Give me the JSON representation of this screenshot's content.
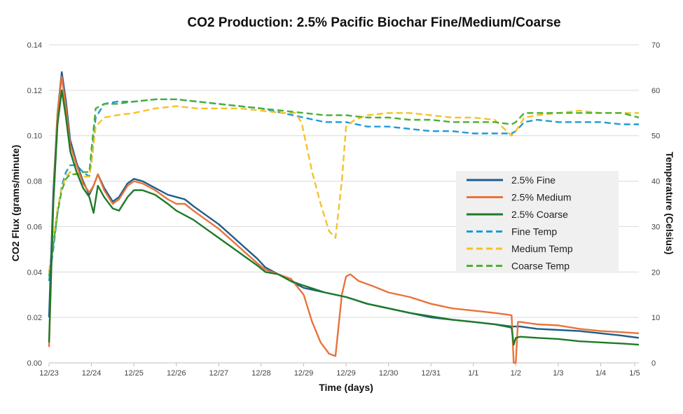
{
  "chart_data": {
    "type": "line",
    "title": "CO2 Production: 2.5% Pacific Biochar Fine/Medium/Coarse",
    "xlabel": "Time (days)",
    "ylabel": "CO2 Flux (grams/minute)",
    "y2label": "Temperature (Celsius)",
    "xlim": [
      0,
      13.9
    ],
    "ylim": [
      0,
      0.14
    ],
    "y2lim": [
      0,
      70
    ],
    "grid": true,
    "legend_position": "right",
    "x_ticks": [
      {
        "x": 0,
        "label": "12/23"
      },
      {
        "x": 1,
        "label": "12/24"
      },
      {
        "x": 2,
        "label": "12/25"
      },
      {
        "x": 3,
        "label": "12/26"
      },
      {
        "x": 4,
        "label": "12/27"
      },
      {
        "x": 5,
        "label": "12/28"
      },
      {
        "x": 6,
        "label": "12/29"
      },
      {
        "x": 7,
        "label": "12/29"
      },
      {
        "x": 8,
        "label": "12/30"
      },
      {
        "x": 9,
        "label": "12/31"
      },
      {
        "x": 10,
        "label": "1/1"
      },
      {
        "x": 11,
        "label": "1/2"
      },
      {
        "x": 12,
        "label": "1/3"
      },
      {
        "x": 13,
        "label": "1/4"
      },
      {
        "x": 13.8,
        "label": "1/5"
      }
    ],
    "y_ticks": [
      "0.00",
      "0.02",
      "0.04",
      "0.06",
      "0.08",
      "0.10",
      "0.12",
      "0.14"
    ],
    "y2_ticks": [
      "0",
      "10",
      "20",
      "30",
      "40",
      "50",
      "60",
      "70"
    ],
    "series": [
      {
        "name": "2.5% Fine",
        "axis": "left",
        "color": "#1F5C8B",
        "dash": false,
        "x": [
          0,
          0.1,
          0.2,
          0.3,
          0.4,
          0.5,
          0.65,
          0.8,
          0.95,
          1.05,
          1.15,
          1.3,
          1.5,
          1.65,
          1.85,
          2.0,
          2.2,
          2.5,
          2.8,
          3.0,
          3.2,
          3.4,
          3.7,
          4.0,
          4.3,
          4.6,
          4.9,
          5.1,
          5.4,
          5.7,
          6.0,
          6.5,
          7.0,
          7.5,
          8.0,
          8.5,
          9.0,
          9.5,
          10.0,
          10.5,
          10.9,
          11.0,
          11.1,
          11.5,
          12.0,
          12.5,
          13.0,
          13.5,
          13.9
        ],
        "y": [
          0.02,
          0.075,
          0.11,
          0.128,
          0.115,
          0.098,
          0.088,
          0.08,
          0.074,
          0.078,
          0.083,
          0.077,
          0.071,
          0.073,
          0.079,
          0.081,
          0.08,
          0.077,
          0.074,
          0.073,
          0.072,
          0.069,
          0.065,
          0.061,
          0.056,
          0.051,
          0.046,
          0.042,
          0.039,
          0.036,
          0.033,
          0.031,
          0.029,
          0.026,
          0.024,
          0.022,
          0.02,
          0.019,
          0.018,
          0.017,
          0.016,
          0.016,
          0.016,
          0.015,
          0.0145,
          0.014,
          0.013,
          0.012,
          0.011
        ]
      },
      {
        "name": "2.5% Medium",
        "axis": "left",
        "color": "#E8733A",
        "dash": false,
        "x": [
          0,
          0.1,
          0.2,
          0.3,
          0.4,
          0.5,
          0.65,
          0.8,
          0.95,
          1.05,
          1.15,
          1.3,
          1.5,
          1.65,
          1.85,
          2.0,
          2.2,
          2.5,
          2.8,
          3.0,
          3.2,
          3.4,
          3.7,
          4.0,
          4.3,
          4.6,
          4.9,
          5.1,
          5.4,
          5.7,
          6.0,
          6.2,
          6.4,
          6.6,
          6.75,
          6.9,
          7.0,
          7.1,
          7.3,
          7.6,
          8.0,
          8.5,
          9.0,
          9.5,
          10.0,
          10.5,
          10.9,
          10.95,
          11.0,
          11.05,
          11.1,
          11.5,
          12.0,
          12.5,
          13.0,
          13.5,
          13.9
        ],
        "y": [
          0.007,
          0.07,
          0.11,
          0.126,
          0.112,
          0.096,
          0.087,
          0.079,
          0.075,
          0.078,
          0.083,
          0.076,
          0.07,
          0.072,
          0.078,
          0.08,
          0.079,
          0.076,
          0.072,
          0.07,
          0.07,
          0.067,
          0.063,
          0.059,
          0.054,
          0.049,
          0.044,
          0.041,
          0.039,
          0.037,
          0.03,
          0.018,
          0.009,
          0.004,
          0.003,
          0.03,
          0.038,
          0.039,
          0.036,
          0.034,
          0.031,
          0.029,
          0.026,
          0.024,
          0.023,
          0.022,
          0.021,
          0.0,
          0.0,
          0.018,
          0.018,
          0.017,
          0.0165,
          0.015,
          0.014,
          0.0135,
          0.013
        ]
      },
      {
        "name": "2.5% Coarse",
        "axis": "left",
        "color": "#1E7A28",
        "dash": false,
        "x": [
          0,
          0.1,
          0.2,
          0.3,
          0.4,
          0.5,
          0.65,
          0.8,
          0.95,
          1.05,
          1.15,
          1.3,
          1.5,
          1.65,
          1.85,
          2.0,
          2.2,
          2.5,
          2.8,
          3.0,
          3.2,
          3.4,
          3.7,
          4.0,
          4.3,
          4.6,
          4.9,
          5.1,
          5.4,
          5.7,
          6.0,
          6.5,
          7.0,
          7.5,
          8.0,
          8.5,
          9.0,
          9.5,
          10.0,
          10.5,
          10.9,
          10.95,
          11.0,
          11.1,
          11.5,
          12.0,
          12.5,
          13.0,
          13.5,
          13.9
        ],
        "y": [
          0.009,
          0.07,
          0.105,
          0.12,
          0.108,
          0.093,
          0.084,
          0.077,
          0.073,
          0.066,
          0.078,
          0.073,
          0.068,
          0.067,
          0.073,
          0.076,
          0.076,
          0.074,
          0.07,
          0.067,
          0.065,
          0.063,
          0.059,
          0.055,
          0.051,
          0.047,
          0.043,
          0.04,
          0.039,
          0.036,
          0.034,
          0.031,
          0.029,
          0.026,
          0.024,
          0.022,
          0.0205,
          0.019,
          0.018,
          0.017,
          0.0155,
          0.008,
          0.011,
          0.0115,
          0.011,
          0.0105,
          0.0095,
          0.009,
          0.0085,
          0.008
        ]
      },
      {
        "name": "Fine Temp",
        "axis": "right",
        "color": "#1E9BD7",
        "dash": true,
        "x": [
          0,
          0.1,
          0.2,
          0.3,
          0.4,
          0.5,
          0.65,
          0.8,
          0.95,
          1.0,
          1.1,
          1.3,
          1.6,
          2.0,
          2.5,
          3.0,
          3.5,
          4.0,
          4.5,
          5.0,
          5.5,
          6.0,
          6.5,
          7.0,
          7.5,
          8.0,
          8.5,
          9.0,
          9.5,
          10.0,
          10.5,
          10.9,
          11.0,
          11.2,
          11.5,
          12.0,
          12.5,
          13.0,
          13.5,
          13.9
        ],
        "y": [
          18,
          25,
          33,
          39,
          42,
          43.5,
          43.5,
          42,
          41,
          45,
          54,
          57,
          57.5,
          57.5,
          58,
          58,
          57.5,
          57,
          56.5,
          56,
          55,
          54,
          53,
          53,
          52,
          52,
          51.5,
          51,
          51,
          50.5,
          50.5,
          50.5,
          51,
          53,
          53.5,
          53,
          53,
          53,
          52.5,
          52.5
        ]
      },
      {
        "name": "Medium Temp",
        "axis": "right",
        "color": "#F5C227",
        "dash": true,
        "x": [
          0,
          0.1,
          0.2,
          0.3,
          0.4,
          0.5,
          0.65,
          0.8,
          0.95,
          1.0,
          1.1,
          1.3,
          1.6,
          2.0,
          2.5,
          3.0,
          3.5,
          4.0,
          4.5,
          5.0,
          5.5,
          5.8,
          5.95,
          6.2,
          6.4,
          6.6,
          6.75,
          6.9,
          7.0,
          7.2,
          7.5,
          8.0,
          8.5,
          9.0,
          9.5,
          10.0,
          10.5,
          10.9,
          11.0,
          11.2,
          11.5,
          12.0,
          12.5,
          13.0,
          13.5,
          13.9
        ],
        "y": [
          20,
          27,
          34,
          38.5,
          41,
          42,
          41.5,
          41,
          41,
          44,
          52,
          54,
          54.5,
          55,
          56,
          56.5,
          56,
          56,
          56,
          55.5,
          55,
          55,
          53,
          42,
          35,
          29,
          27.5,
          40,
          52,
          53.5,
          54.5,
          55,
          55,
          54.5,
          54,
          54,
          53.5,
          50,
          51,
          54,
          54.5,
          55,
          55.5,
          55,
          55,
          55
        ]
      },
      {
        "name": "Coarse Temp",
        "axis": "right",
        "color": "#4CAF33",
        "dash": true,
        "x": [
          0,
          0.1,
          0.2,
          0.3,
          0.4,
          0.5,
          0.65,
          0.8,
          0.95,
          1.0,
          1.1,
          1.3,
          1.6,
          2.0,
          2.5,
          3.0,
          3.5,
          4.0,
          4.5,
          5.0,
          5.5,
          6.0,
          6.5,
          7.0,
          7.5,
          8.0,
          8.5,
          9.0,
          9.5,
          10.0,
          10.5,
          10.9,
          11.0,
          11.2,
          11.5,
          12.0,
          12.5,
          13.0,
          13.5,
          13.9
        ],
        "y": [
          19,
          26,
          33,
          38,
          40.5,
          41.5,
          41.5,
          42,
          42,
          47,
          56,
          57,
          57,
          57.5,
          58,
          58,
          57.5,
          57,
          56.5,
          56,
          55.5,
          55,
          54.5,
          54.5,
          54,
          54,
          53.5,
          53.5,
          53,
          53,
          53,
          52.5,
          53,
          55,
          55,
          55,
          55,
          55,
          55,
          54
        ]
      }
    ]
  }
}
